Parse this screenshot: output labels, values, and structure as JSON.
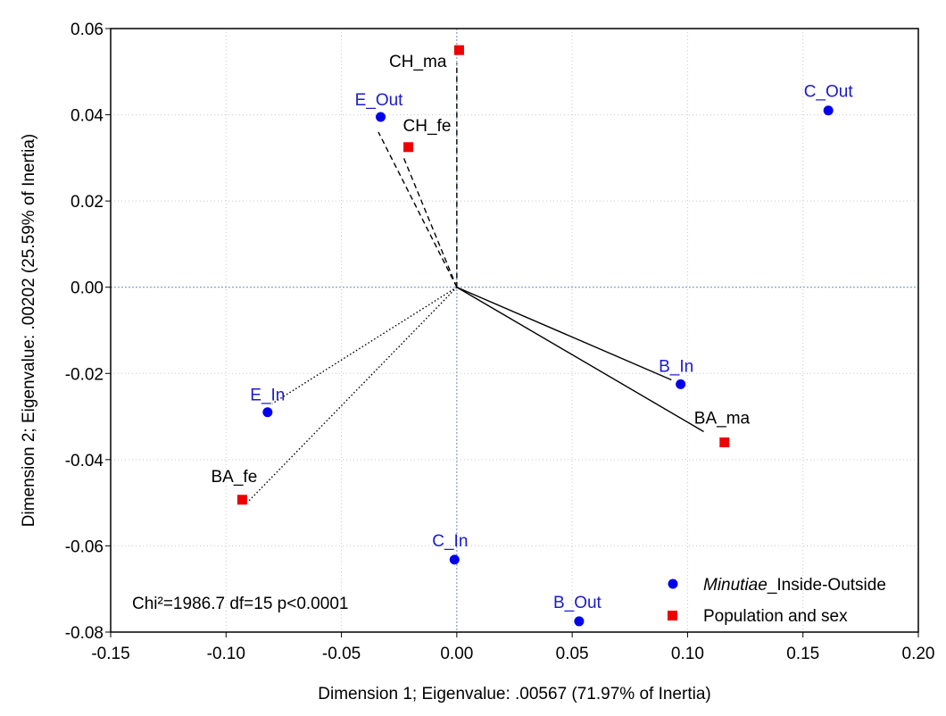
{
  "chart_data": {
    "type": "scatter",
    "xlabel": "Dimension 1; Eigenvalue: .00567 (71.97% of Inertia)",
    "ylabel": "Dimension 2; Eigenvalue: .00202 (25.59% of Inertia)",
    "xlim": [
      -0.15,
      0.2
    ],
    "ylim": [
      -0.08,
      0.06
    ],
    "xticks": [
      "-0.15",
      "-0.10",
      "-0.05",
      "0.00",
      "0.05",
      "0.10",
      "0.15",
      "0.20"
    ],
    "yticks": [
      "0.06",
      "0.04",
      "0.02",
      "0.00",
      "-0.02",
      "-0.04",
      "-0.06",
      "-0.08"
    ],
    "grid": true,
    "legend_position": "bottom-right",
    "annotation": "Chi²=1986.7 df=15 p<0.0001",
    "series": [
      {
        "name": "Minutiae_Inside-Outside",
        "legend_italic": "Minutiae",
        "legend_rest": "_Inside-Outside",
        "marker": "circle",
        "color": "#0000ee",
        "points": [
          {
            "label": "C_Out",
            "x": 0.161,
            "y": 0.041
          },
          {
            "label": "E_Out",
            "x": -0.033,
            "y": 0.0395
          },
          {
            "label": "B_In",
            "x": 0.097,
            "y": -0.0225
          },
          {
            "label": "E_In",
            "x": -0.082,
            "y": -0.029
          },
          {
            "label": "C_In",
            "x": -0.001,
            "y": -0.0632
          },
          {
            "label": "B_Out",
            "x": 0.053,
            "y": -0.0775
          }
        ]
      },
      {
        "name": "Population and sex",
        "marker": "square",
        "color": "#ee0000",
        "points": [
          {
            "label": "CH_ma",
            "x": 0.001,
            "y": 0.055
          },
          {
            "label": "CH_fe",
            "x": -0.021,
            "y": 0.0325
          },
          {
            "label": "BA_ma",
            "x": 0.116,
            "y": -0.036
          },
          {
            "label": "BA_fe",
            "x": -0.093,
            "y": -0.0493
          }
        ]
      }
    ],
    "vectors": [
      {
        "to": [
          -0.034,
          0.036
        ],
        "style": "dashed"
      },
      {
        "to": [
          -0.023,
          0.03
        ],
        "style": "dashed"
      },
      {
        "to": [
          0.0,
          0.052
        ],
        "style": "dashed"
      },
      {
        "to": [
          0.093,
          -0.0215
        ],
        "style": "solid"
      },
      {
        "to": [
          0.107,
          -0.0335
        ],
        "style": "solid"
      },
      {
        "to": [
          -0.08,
          -0.027
        ],
        "style": "dotted"
      },
      {
        "to": [
          -0.09,
          -0.0495
        ],
        "style": "dotted"
      }
    ]
  }
}
